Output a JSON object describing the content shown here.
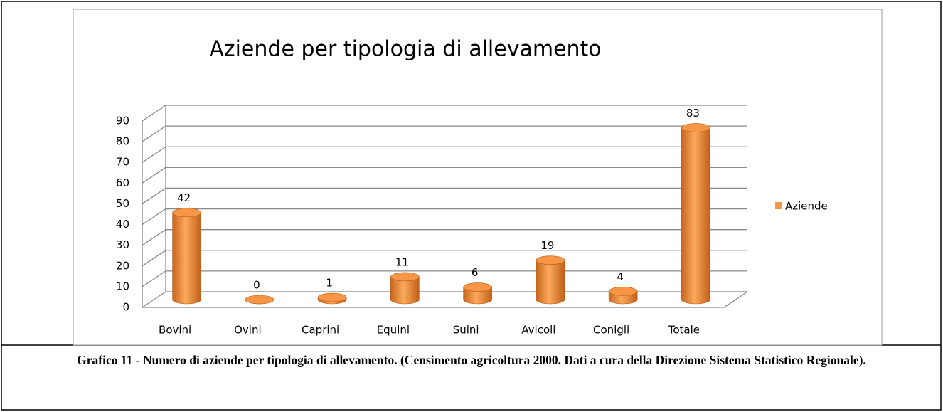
{
  "chart_data": {
    "type": "bar3d",
    "title": "Aziende per tipologia di allevamento",
    "categories": [
      "Bovini",
      "Ovini",
      "Caprini",
      "Equini",
      "Suini",
      "Avicoli",
      "Conigli",
      "Totale"
    ],
    "series": [
      {
        "name": "Aziende",
        "color": "#f79646",
        "values": [
          42,
          0,
          1,
          11,
          6,
          19,
          4,
          83
        ]
      }
    ],
    "ylim": [
      0,
      90
    ],
    "yticks": [
      0,
      10,
      20,
      30,
      40,
      50,
      60,
      70,
      80,
      90
    ],
    "grid": true,
    "legend": "right"
  },
  "caption": "Grafico 11 - Numero di aziende per tipologia di allevamento. (Censimento agricoltura 2000. Dati a cura della Direzione Sistema Statistico Regionale)."
}
